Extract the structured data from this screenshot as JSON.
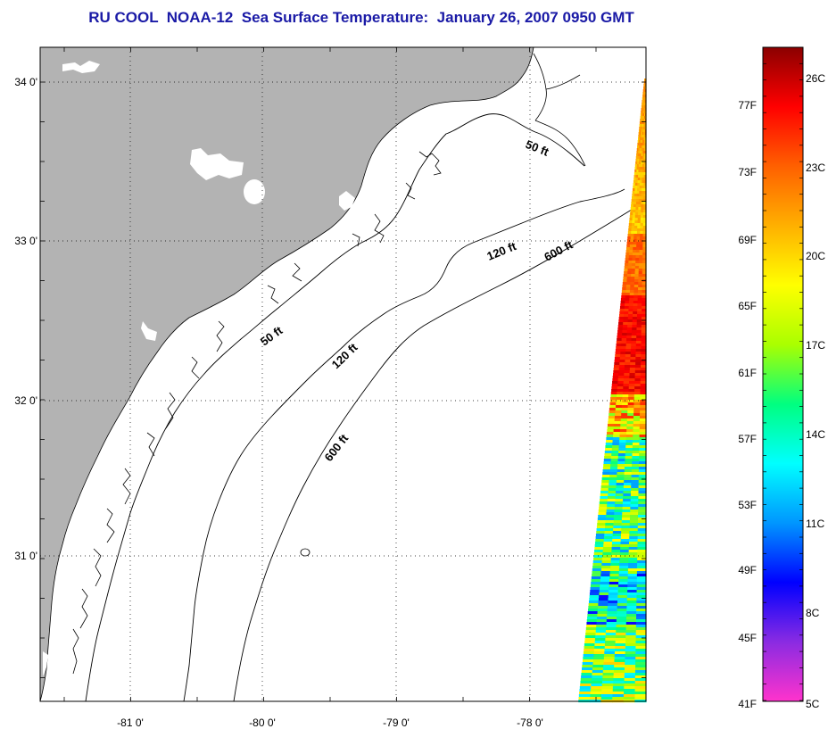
{
  "title": "RU COOL  NOAA-12  Sea Surface Temperature:  January 26, 2007 0950 GMT",
  "map": {
    "lat_labels": [
      "34 0'",
      "33 0'",
      "32 0'",
      "31 0'"
    ],
    "lon_labels": [
      "-81 0'",
      "-80 0'",
      "-79 0'",
      "-78 0'"
    ],
    "contours": {
      "shelf_50_a": "50 ft",
      "shelf_50_b": "50 ft",
      "shelf_120_a": "120 ft",
      "shelf_120_b": "120 ft",
      "slope_600_a": "600 ft",
      "slope_600_b": "600 ft"
    },
    "colors": {
      "land": "#b3b3b3",
      "ocean": "#ffffff",
      "grid": "#888888",
      "title": "#1a1aa6"
    }
  },
  "colorbar": {
    "fahrenheit_labels": [
      "77F",
      "73F",
      "69F",
      "65F",
      "61F",
      "57F",
      "53F",
      "49F",
      "45F",
      "41F"
    ],
    "celsius_labels": [
      "26C",
      "23C",
      "20C",
      "17C",
      "14C",
      "11C",
      "8C",
      "5C"
    ],
    "range_celsius": [
      5,
      27
    ],
    "colormap": [
      "#ff33cc",
      "#8a2be2",
      "#0000ff",
      "#0096ff",
      "#00ffff",
      "#00ff80",
      "#aaff00",
      "#ffff00",
      "#ffb000",
      "#ff6000",
      "#ff0000",
      "#8b0000"
    ]
  }
}
